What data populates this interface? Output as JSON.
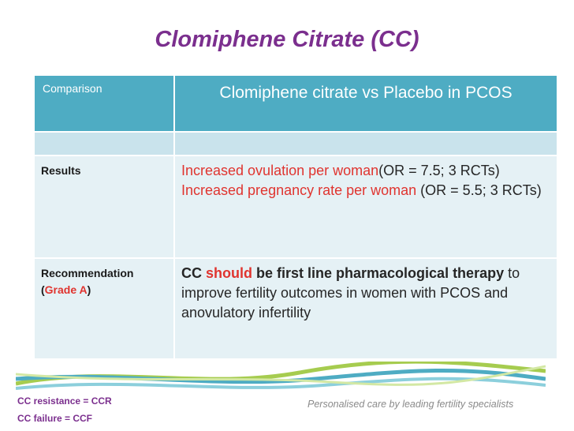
{
  "slide": {
    "title": "Clomiphene Citrate (CC)",
    "table": {
      "header": {
        "label": "Comparison",
        "value": "Clomiphene citrate  vs Placebo in PCOS"
      },
      "results": {
        "label": "Results",
        "line1_red": "Increased ovulation per woman",
        "line1_rest": "(OR = 7.5; 3 RCTs)",
        "line2_red": "Increased pregnancy rate per woman",
        "line2_rest": " (OR = 5.5; 3 RCTs)"
      },
      "recommendation": {
        "label": "Recommendation",
        "grade_open": "(",
        "grade": "Grade A",
        "grade_close": ")",
        "bold_start": "CC ",
        "should": "should",
        "bold_end": " be first line pharmacological therapy",
        "rest": " to improve fertility outcomes in women with PCOS and anovulatory infertility"
      }
    },
    "footer": {
      "tagline": "Personalised care by leading fertility specialists",
      "note1": "CC resistance = CCR",
      "note2": "CC failure = CCF"
    },
    "colors": {
      "title": "#7b2f8e",
      "header_bg": "#4eacc3",
      "row_bg": "#e5f1f5",
      "highlight": "#e0342f"
    }
  }
}
